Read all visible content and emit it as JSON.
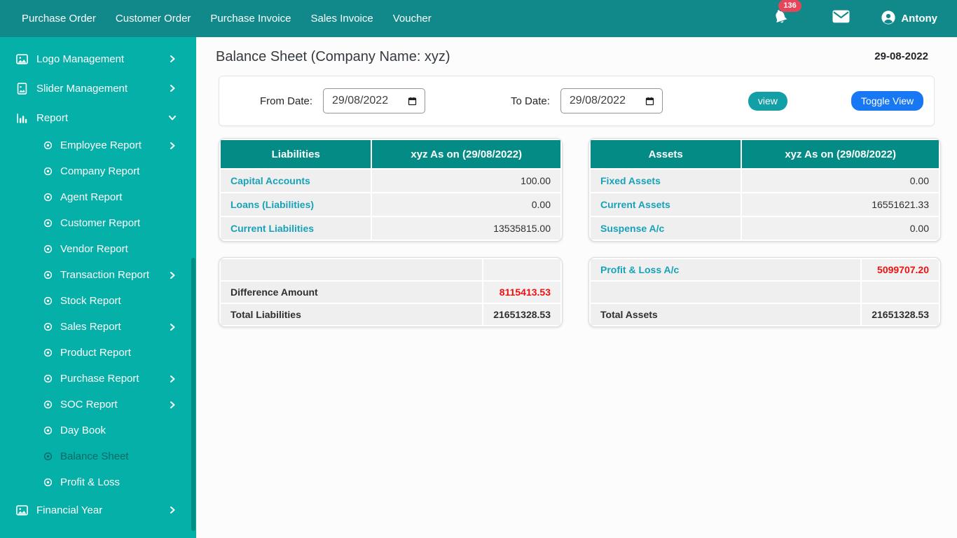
{
  "colors": {
    "navbar-bg": "#11898b",
    "sidebar-bg": "#04b0a8",
    "scrollbar-thumb": "#018d82",
    "table-header-bg": "#058b85",
    "link": "#17a2b8",
    "red": "#ee1111",
    "view-btn": "#12a0a6",
    "toggle-btn": "#1877f2",
    "badge-bg": "#e8455b"
  },
  "navbar": {
    "items": [
      "Purchase Order",
      "Customer Order",
      "Purchase Invoice",
      "Sales Invoice",
      "Voucher"
    ],
    "notification_count": "136",
    "user_name": "Antony"
  },
  "sidebar": {
    "items": [
      {
        "label": "Logo Management",
        "icon": "image-icon",
        "level": 1,
        "chevron": "right"
      },
      {
        "label": "Slider Management",
        "icon": "file-image-icon",
        "level": 1,
        "chevron": "right"
      },
      {
        "label": "Report",
        "icon": "bar-chart-icon",
        "level": 1,
        "chevron": "down"
      },
      {
        "label": "Employee Report",
        "icon": "dot-circle-icon",
        "level": 2,
        "chevron": "right"
      },
      {
        "label": "Company Report",
        "icon": "dot-circle-icon",
        "level": 2,
        "chevron": "none"
      },
      {
        "label": "Agent Report",
        "icon": "dot-circle-icon",
        "level": 2,
        "chevron": "none"
      },
      {
        "label": "Customer Report",
        "icon": "dot-circle-icon",
        "level": 2,
        "chevron": "none"
      },
      {
        "label": "Vendor Report",
        "icon": "dot-circle-icon",
        "level": 2,
        "chevron": "none"
      },
      {
        "label": "Transaction Report",
        "icon": "dot-circle-icon",
        "level": 2,
        "chevron": "right"
      },
      {
        "label": "Stock Report",
        "icon": "dot-circle-icon",
        "level": 2,
        "chevron": "none"
      },
      {
        "label": "Sales Report",
        "icon": "dot-circle-icon",
        "level": 2,
        "chevron": "right"
      },
      {
        "label": "Product Report",
        "icon": "dot-circle-icon",
        "level": 2,
        "chevron": "none"
      },
      {
        "label": "Purchase Report",
        "icon": "dot-circle-icon",
        "level": 2,
        "chevron": "right"
      },
      {
        "label": "SOC Report",
        "icon": "dot-circle-icon",
        "level": 2,
        "chevron": "right"
      },
      {
        "label": "Day Book",
        "icon": "dot-circle-icon",
        "level": 2,
        "chevron": "none"
      },
      {
        "label": "Balance Sheet",
        "icon": "dot-circle-icon",
        "level": 2,
        "chevron": "none",
        "active": true
      },
      {
        "label": "Profit & Loss",
        "icon": "dot-circle-icon",
        "level": 2,
        "chevron": "none"
      },
      {
        "label": "Financial Year",
        "icon": "image-icon",
        "level": 1,
        "chevron": "right"
      }
    ]
  },
  "main": {
    "page_title": "Balance Sheet (Company Name: xyz)",
    "date": "29-08-2022",
    "filter": {
      "from_label": "From Date:",
      "from_value": "29/08/2022",
      "to_label": "To Date:",
      "to_value": "29/08/2022",
      "view_label": "view",
      "toggle_label": "Toggle View"
    },
    "tables": {
      "liabilities": {
        "headers": [
          "Liabilities",
          "xyz As on (29/08/2022)"
        ],
        "rows": [
          {
            "name": "Capital Accounts",
            "value": "100.00",
            "name_style": "link",
            "value_style": "normal"
          },
          {
            "name": "Loans (Liabilities)",
            "value": "0.00",
            "name_style": "link",
            "value_style": "normal"
          },
          {
            "name": "Current Liabilities",
            "value": "13535815.00",
            "name_style": "link",
            "value_style": "normal"
          }
        ]
      },
      "assets": {
        "headers": [
          "Assets",
          "xyz As on (29/08/2022)"
        ],
        "rows": [
          {
            "name": "Fixed Assets",
            "value": "0.00",
            "name_style": "link",
            "value_style": "normal"
          },
          {
            "name": "Current Assets",
            "value": "16551621.33",
            "name_style": "link",
            "value_style": "normal"
          },
          {
            "name": "Suspense A/c",
            "value": "0.00",
            "name_style": "link",
            "value_style": "normal"
          }
        ]
      },
      "liabilities_summary": {
        "rows": [
          {
            "name": "",
            "value": "",
            "name_style": "none",
            "value_style": "normal"
          },
          {
            "name": "Difference Amount",
            "value": "8115413.53",
            "name_style": "bold",
            "value_style": "red"
          },
          {
            "name": "Total Liabilities",
            "value": "21651328.53",
            "name_style": "bold",
            "value_style": "bold"
          }
        ]
      },
      "assets_summary": {
        "rows": [
          {
            "name": "Profit & Loss A/c",
            "value": "5099707.20",
            "name_style": "link",
            "value_style": "red"
          },
          {
            "name": "",
            "value": "",
            "name_style": "none",
            "value_style": "normal"
          },
          {
            "name": "Total Assets",
            "value": "21651328.53",
            "name_style": "bold",
            "value_style": "bold"
          }
        ]
      }
    }
  }
}
